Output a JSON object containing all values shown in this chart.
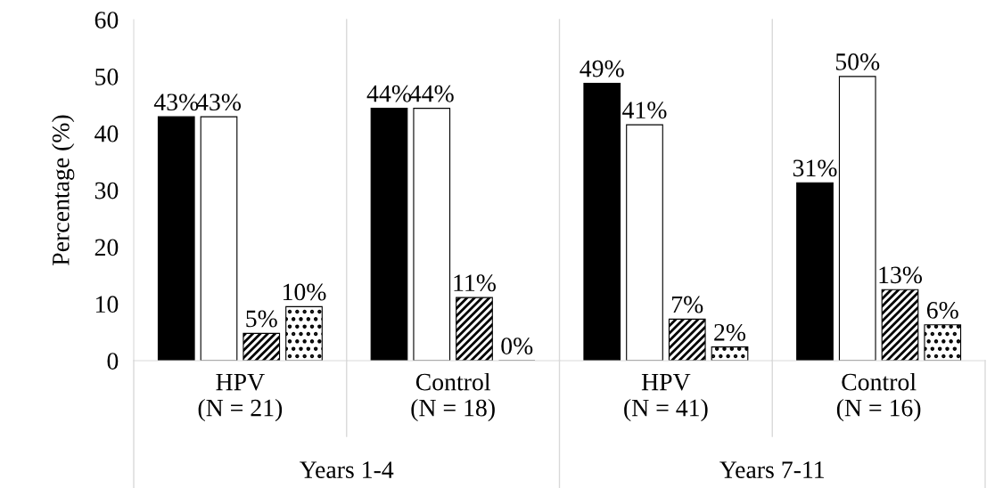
{
  "chart_data": {
    "type": "bar",
    "ylabel": "Percentage (%)",
    "categories": [
      "HPV\n(N = 21)",
      "Control\n(N = 18)",
      "HPV\n(N = 41)",
      "Control\n(N = 16)"
    ],
    "series": [
      {
        "color": "#000000",
        "values": [
          42.9,
          44.4,
          48.8,
          31.3
        ],
        "value_labels": [
          "43%",
          "44%",
          "49%",
          "31%"
        ]
      },
      {
        "color": "#ffffff",
        "values": [
          42.9,
          44.4,
          41.5,
          50.0
        ],
        "value_labels": [
          "43%",
          "44%",
          "41%",
          "50%"
        ]
      },
      {
        "color": "#000000",
        "values": [
          4.8,
          11.1,
          7.3,
          12.5
        ],
        "value_labels": [
          "5%",
          "11%",
          "7%",
          "13%"
        ]
      },
      {
        "color": "#000000",
        "values": [
          9.5,
          0,
          2.4,
          6.3
        ],
        "value_labels": [
          "10%",
          "0%",
          "2%",
          "6%"
        ]
      }
    ],
    "annotations": [
      "Years 1-4",
      "Years 7-11"
    ],
    "ylim": [
      0,
      60
    ],
    "yticks": [
      0,
      10,
      20,
      30,
      40,
      50,
      60
    ],
    "grid": false,
    "legend": false
  }
}
